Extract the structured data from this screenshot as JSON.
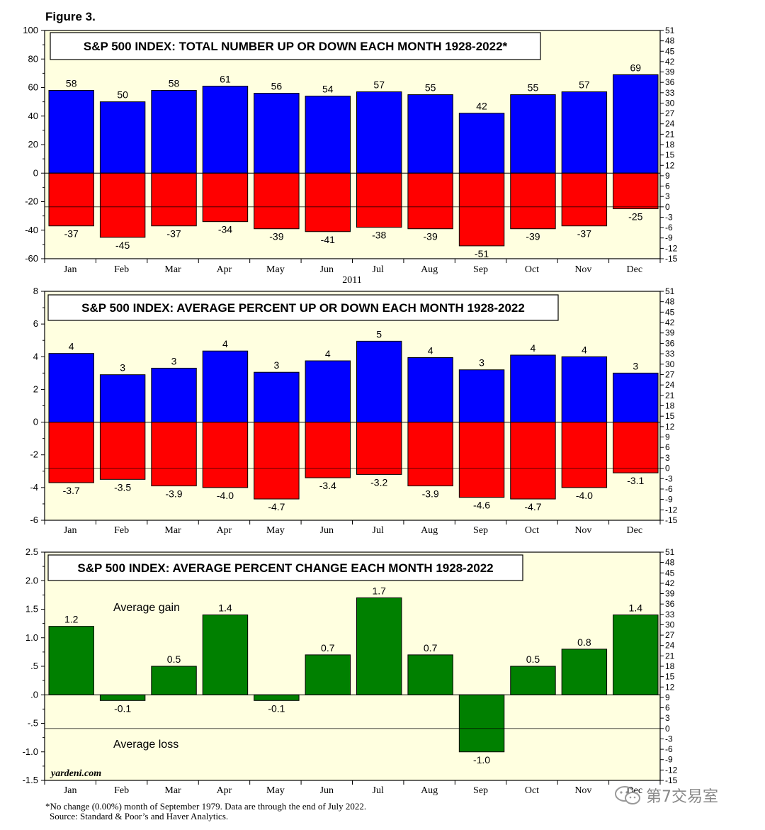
{
  "figure_label": "Figure 3.",
  "year_label": "2011",
  "footnote": {
    "line1": "*No change (0.00%) month of September 1979. Data are through the end of July 2022.",
    "line2": "Source: Standard & Poor’s and Haver Analytics."
  },
  "watermark_text": "第7交易室",
  "colors": {
    "up": "#0000ff",
    "down": "#ff0000",
    "change": "#008000",
    "plot_bg": "#ffffe0",
    "border": "#000000"
  },
  "chart_data": [
    {
      "type": "bar",
      "title": "S&P 500 INDEX: TOTAL NUMBER UP OR DOWN EACH MONTH 1928-2022*",
      "categories": [
        "Jan",
        "Feb",
        "Mar",
        "Apr",
        "May",
        "Jun",
        "Jul",
        "Aug",
        "Sep",
        "Oct",
        "Nov",
        "Dec"
      ],
      "series": [
        {
          "name": "Up",
          "values": [
            58,
            50,
            58,
            61,
            56,
            54,
            57,
            55,
            42,
            55,
            57,
            69
          ]
        },
        {
          "name": "Down",
          "values": [
            -37,
            -45,
            -37,
            -34,
            -39,
            -41,
            -38,
            -39,
            -51,
            -39,
            -37,
            -25
          ]
        }
      ],
      "value_labels": {
        "up": [
          "58",
          "50",
          "58",
          "61",
          "56",
          "54",
          "57",
          "55",
          "42",
          "55",
          "57",
          "69"
        ],
        "down": [
          "-37",
          "-45",
          "-37",
          "-34",
          "-39",
          "-41",
          "-38",
          "-39",
          "-51",
          "-39",
          "-37",
          "-25"
        ]
      },
      "ylim": [
        -60,
        100
      ],
      "yticks": [
        -60,
        -40,
        -20,
        0,
        20,
        40,
        60,
        80,
        100
      ],
      "ytick_labels": [
        "-60",
        "-40",
        "-20",
        "0",
        "20",
        "40",
        "60",
        "80",
        "100"
      ],
      "y2lim": [
        -15,
        51
      ],
      "y2ticks": [
        -15,
        -12,
        -9,
        -6,
        -3,
        0,
        3,
        6,
        9,
        12,
        15,
        18,
        21,
        24,
        27,
        30,
        33,
        36,
        39,
        42,
        45,
        48,
        51
      ],
      "y2tick_labels": [
        "-15",
        "-12",
        "-9",
        "-6",
        "-3",
        "0",
        "3",
        "6",
        "9",
        "12",
        "15",
        "18",
        "21",
        "24",
        "27",
        "30",
        "33",
        "36",
        "39",
        "42",
        "45",
        "48",
        "51"
      ],
      "ref_line_y2": 0
    },
    {
      "type": "bar",
      "title": "S&P 500 INDEX: AVERAGE PERCENT UP OR DOWN EACH MONTH 1928-2022",
      "categories": [
        "Jan",
        "Feb",
        "Mar",
        "Apr",
        "May",
        "Jun",
        "Jul",
        "Aug",
        "Sep",
        "Oct",
        "Nov",
        "Dec"
      ],
      "series": [
        {
          "name": "Average percent up",
          "values": [
            4.2,
            2.9,
            3.3,
            4.35,
            3.05,
            3.75,
            4.95,
            3.95,
            3.2,
            4.1,
            4.0,
            3.0
          ]
        },
        {
          "name": "Average percent down",
          "values": [
            -3.7,
            -3.5,
            -3.9,
            -4.0,
            -4.7,
            -3.4,
            -3.2,
            -3.9,
            -4.6,
            -4.7,
            -4.0,
            -3.1
          ]
        }
      ],
      "value_labels": {
        "up": [
          "4",
          "3",
          "3",
          "4",
          "3",
          "4",
          "5",
          "4",
          "3",
          "4",
          "4",
          "3"
        ],
        "down": [
          "-3.7",
          "-3.5",
          "-3.9",
          "-4.0",
          "-4.7",
          "-3.4",
          "-3.2",
          "-3.9",
          "-4.6",
          "-4.7",
          "-4.0",
          "-3.1"
        ]
      },
      "ylim": [
        -6,
        8
      ],
      "yticks": [
        -6,
        -4,
        -2,
        0,
        2,
        4,
        6,
        8
      ],
      "ytick_labels": [
        "-6",
        "-4",
        "-2",
        "0",
        "2",
        "4",
        "6",
        "8"
      ],
      "y2lim": [
        -15,
        51
      ],
      "y2ticks": [
        -15,
        -12,
        -9,
        -6,
        -3,
        0,
        3,
        6,
        9,
        12,
        15,
        18,
        21,
        24,
        27,
        30,
        33,
        36,
        39,
        42,
        45,
        48,
        51
      ],
      "y2tick_labels": [
        "-15",
        "-12",
        "-9",
        "-6",
        "-3",
        "0",
        "3",
        "6",
        "9",
        "12",
        "15",
        "18",
        "21",
        "24",
        "27",
        "30",
        "33",
        "36",
        "39",
        "42",
        "45",
        "48",
        "51"
      ],
      "ref_line_y2": 0
    },
    {
      "type": "bar",
      "title": "S&P 500 INDEX: AVERAGE PERCENT CHANGE EACH MONTH 1928-2022",
      "categories": [
        "Jan",
        "Feb",
        "Mar",
        "Apr",
        "May",
        "Jun",
        "Jul",
        "Aug",
        "Sep",
        "Oct",
        "Nov",
        "Dec"
      ],
      "series": [
        {
          "name": "Average percent change",
          "values": [
            1.2,
            -0.1,
            0.5,
            1.4,
            -0.1,
            0.7,
            1.7,
            0.7,
            -1.0,
            0.5,
            0.8,
            1.4
          ]
        }
      ],
      "value_labels": {
        "change": [
          "1.2",
          "-0.1",
          "0.5",
          "1.4",
          "-0.1",
          "0.7",
          "1.7",
          "0.7",
          "-1.0",
          "0.5",
          "0.8",
          "1.4"
        ]
      },
      "annotations": {
        "gain": "Average gain",
        "loss": "Average loss"
      },
      "credit": "yardeni.com",
      "ylim": [
        -1.5,
        2.5
      ],
      "yticks": [
        -1.5,
        -1.0,
        -0.5,
        0.0,
        0.5,
        1.0,
        1.5,
        2.0,
        2.5
      ],
      "ytick_labels": [
        "-1.5",
        "-1.0",
        "-.5",
        ".0",
        ".5",
        "1.0",
        "1.5",
        "2.0",
        "2.5"
      ],
      "y2lim": [
        -15,
        51
      ],
      "y2ticks": [
        -15,
        -12,
        -9,
        -6,
        -3,
        0,
        3,
        6,
        9,
        12,
        15,
        18,
        21,
        24,
        27,
        30,
        33,
        36,
        39,
        42,
        45,
        48,
        51
      ],
      "y2tick_labels": [
        "-15",
        "-12",
        "-9",
        "-6",
        "-3",
        "0",
        "3",
        "6",
        "9",
        "12",
        "15",
        "18",
        "21",
        "24",
        "27",
        "30",
        "33",
        "36",
        "39",
        "42",
        "45",
        "48",
        "51"
      ],
      "ref_line_y2": 0
    }
  ]
}
